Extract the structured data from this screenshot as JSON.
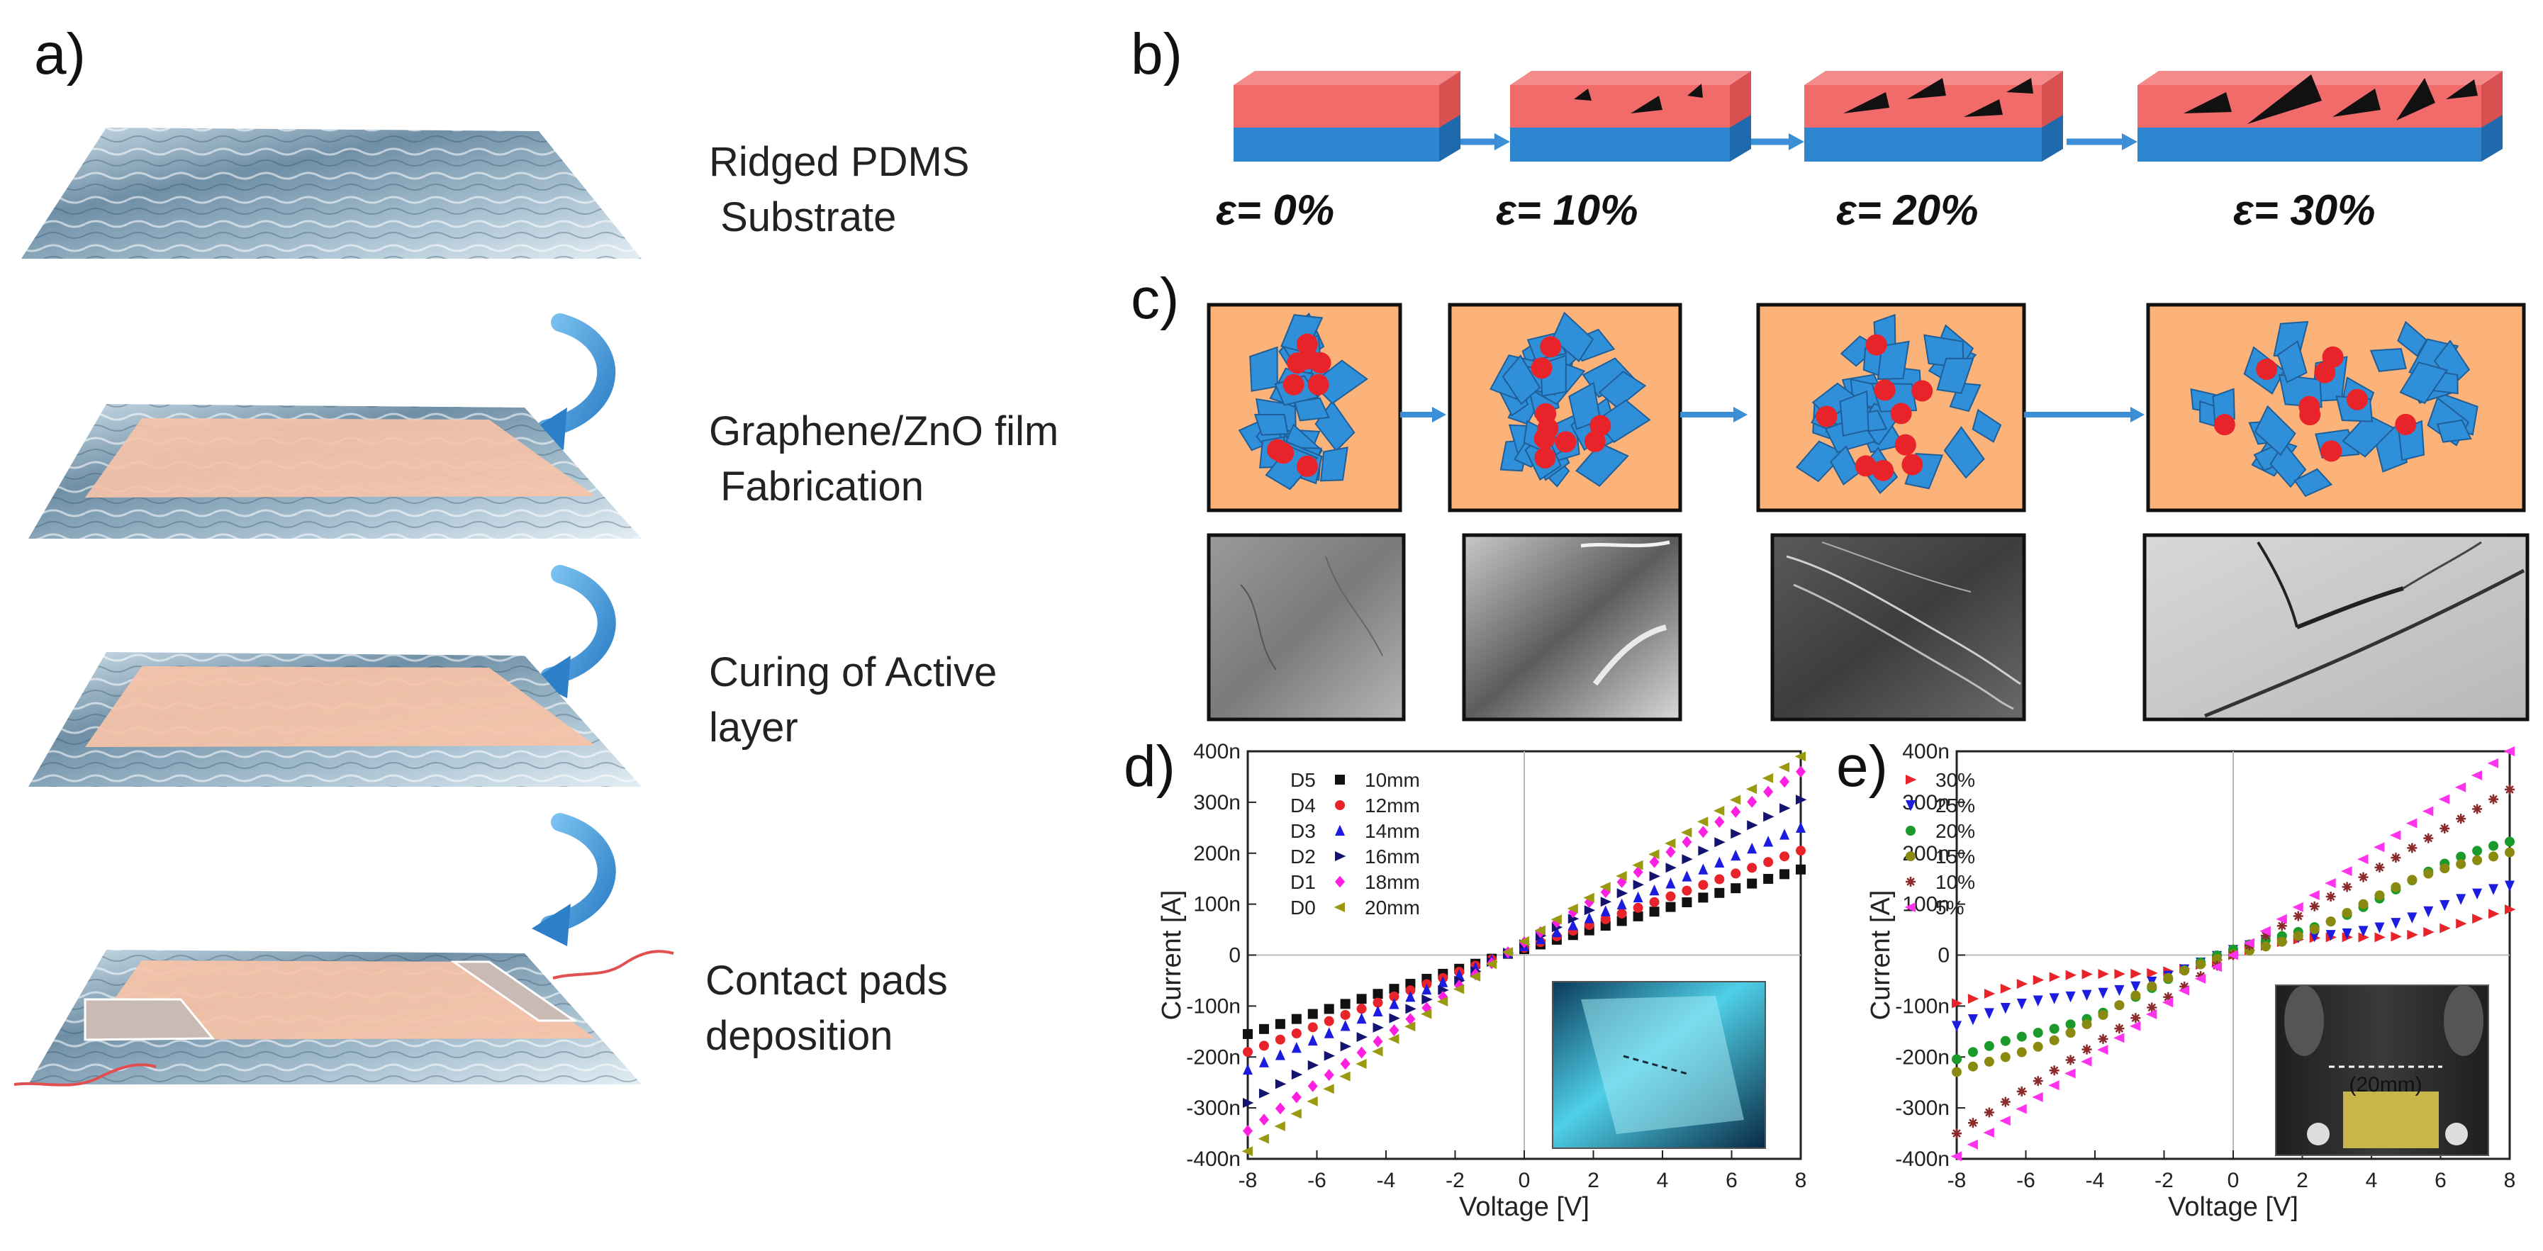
{
  "panels": {
    "a": {
      "label": "a)",
      "steps": [
        {
          "line1": "Ridged PDMS",
          "line2": " Substrate"
        },
        {
          "line1": "Graphene/ZnO film",
          "line2": " Fabrication"
        },
        {
          "line1": "Curing of Active",
          "line2": "layer"
        },
        {
          "line1": "Contact pads",
          "line2": "deposition"
        }
      ]
    },
    "b": {
      "label": "b)",
      "strains": [
        "ε= 0%",
        "ε= 10%",
        "ε= 20%",
        "ε= 30%"
      ]
    },
    "c": {
      "label": "c)"
    },
    "d": {
      "label": "d)"
    },
    "e": {
      "label": "e)"
    }
  },
  "colors": {
    "film_top": "#f26b6b",
    "substrate": "#2e86d1",
    "arrow": "#3a8fd6",
    "network_bg": "#fbb37a",
    "flake": "#2f8fd8",
    "particle": "#e8232a"
  },
  "chart_data": [
    {
      "id": "d",
      "type": "scatter",
      "xlabel": "Voltage [V]",
      "ylabel": "Current [A]",
      "xlim": [
        -8,
        8
      ],
      "ylim": [
        -400,
        400
      ],
      "xticks": [
        "-8",
        "-6",
        "-4",
        "-2",
        "0",
        "2",
        "4",
        "6",
        "8"
      ],
      "yticks": [
        "-400n",
        "-300n",
        "-200n",
        "-100n",
        "0",
        "100n",
        "200n",
        "300n",
        "400n"
      ],
      "series": [
        {
          "name": "10mm",
          "prefix": "D5",
          "marker": "square",
          "color": "#111111",
          "values": [
            -155,
            168
          ]
        },
        {
          "name": "12mm",
          "prefix": "D4",
          "marker": "circle",
          "color": "#e8232a",
          "values": [
            -190,
            205
          ]
        },
        {
          "name": "14mm",
          "prefix": "D3",
          "marker": "triangle-up",
          "color": "#1c1ce0",
          "values": [
            -225,
            250
          ]
        },
        {
          "name": "16mm",
          "prefix": "D2",
          "marker": "triangle-right",
          "color": "#141470",
          "values": [
            -290,
            305
          ]
        },
        {
          "name": "18mm",
          "prefix": "D1",
          "marker": "diamond",
          "color": "#ff1fe0",
          "values": [
            -345,
            360
          ]
        },
        {
          "name": "20mm",
          "prefix": "D0",
          "marker": "triangle-left",
          "color": "#9a9a10",
          "values": [
            -385,
            390
          ]
        }
      ]
    },
    {
      "id": "e",
      "type": "scatter",
      "xlabel": "Voltage [V]",
      "ylabel": "Current [A]",
      "xlim": [
        -8,
        8
      ],
      "ylim": [
        -400,
        400
      ],
      "xticks": [
        "-8",
        "-6",
        "-4",
        "-2",
        "0",
        "2",
        "4",
        "6",
        "8"
      ],
      "yticks": [
        "-400n",
        "-300n",
        "-200n",
        "-100n",
        "0",
        "100n",
        "200n",
        "300n",
        "400n"
      ],
      "inset_label": "(20mm)",
      "series": [
        {
          "name": "30%",
          "marker": "triangle-right",
          "color": "#e8232a",
          "values": [
            -85,
            80
          ]
        },
        {
          "name": "25%",
          "marker": "triangle-down",
          "color": "#1c1ce0",
          "values": [
            -140,
            125
          ]
        },
        {
          "name": "20%",
          "marker": "circle",
          "color": "#1a9a2a",
          "values": [
            -215,
            220
          ]
        },
        {
          "name": "15%",
          "marker": "circle",
          "color": "#8a8a10",
          "values": [
            -240,
            210
          ]
        },
        {
          "name": "10%",
          "marker": "star",
          "color": "#8b2a2a",
          "values": [
            -350,
            325
          ]
        },
        {
          "name": "5%",
          "marker": "triangle-left",
          "color": "#ff33ee",
          "values": [
            -395,
            400
          ]
        }
      ]
    }
  ]
}
